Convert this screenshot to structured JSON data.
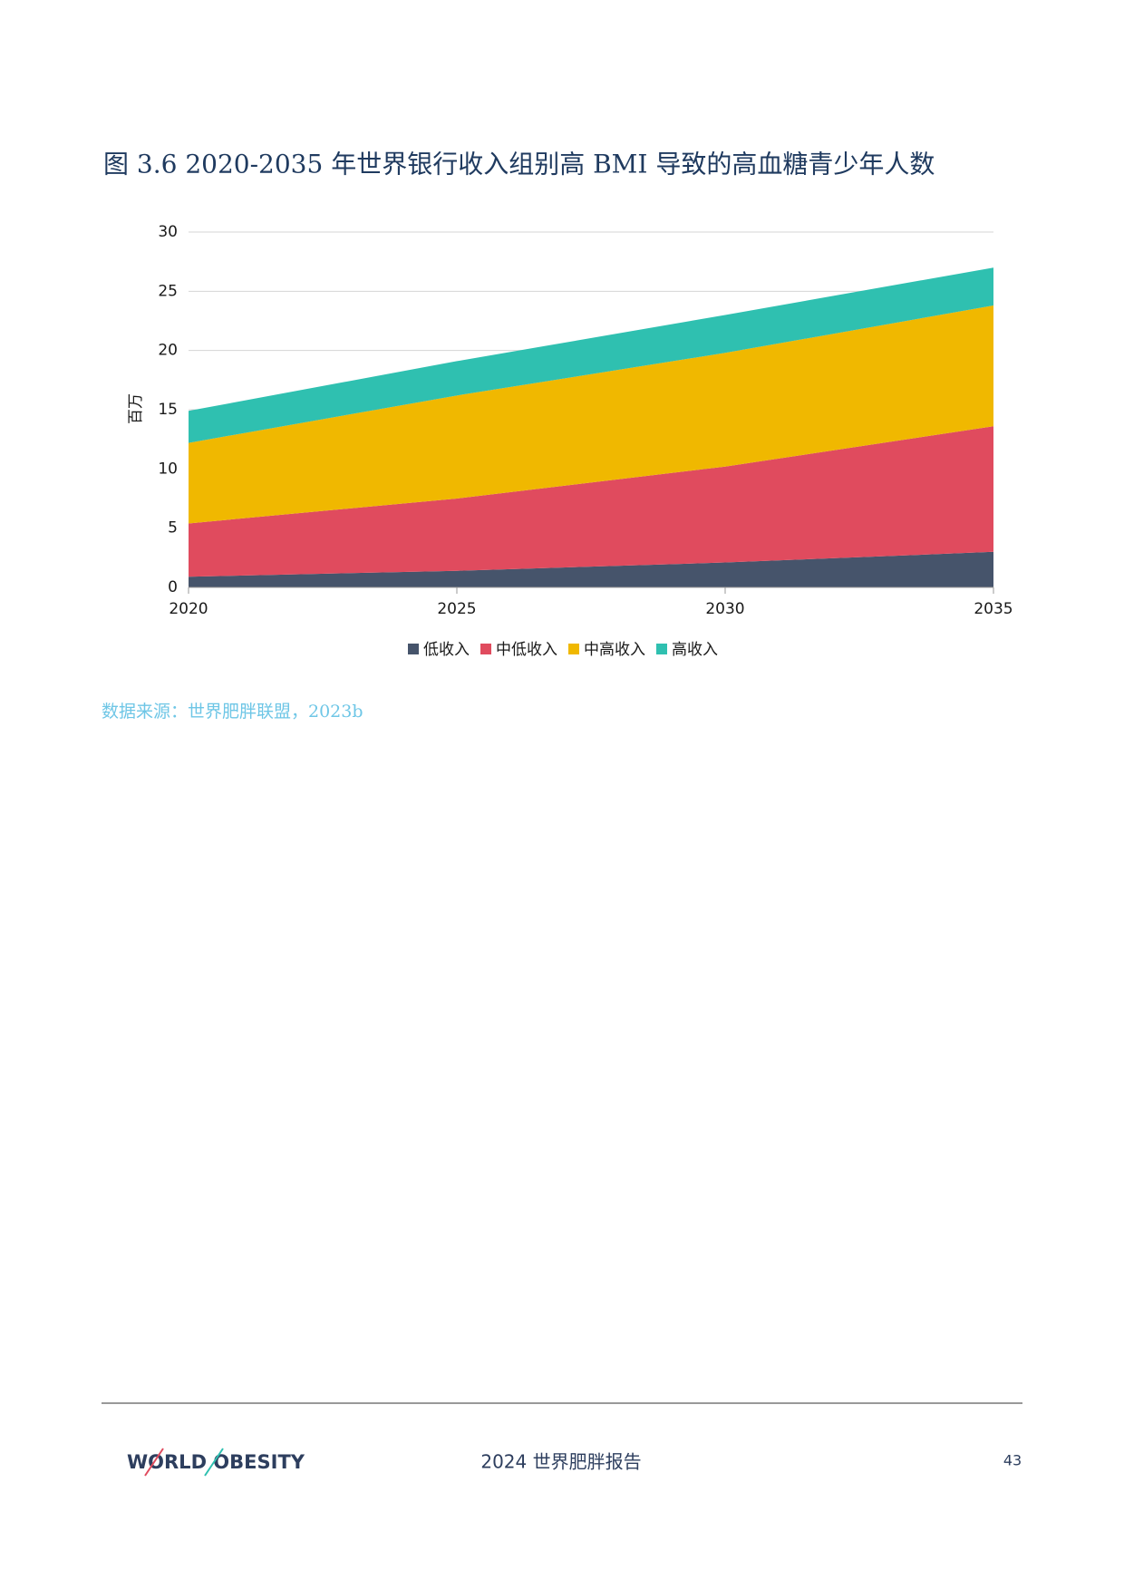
{
  "chart_data": {
    "type": "area",
    "title": "图 3.6 2020-2035 年世界银行收入组别高 BMI 导致的高血糖青少年人数",
    "y_label": "百万",
    "x": [
      2020,
      2025,
      2030,
      2035
    ],
    "xlim": [
      2020,
      2035
    ],
    "xticks": [
      2020,
      2025,
      2030,
      2035
    ],
    "ylim": [
      0,
      30
    ],
    "yticks": [
      0,
      5,
      10,
      15,
      20,
      25,
      30
    ],
    "grid": true,
    "stacked": true,
    "series": [
      {
        "name": "低收入",
        "color": "#46546b",
        "values": [
          0.9,
          1.4,
          2.1,
          3.0
        ]
      },
      {
        "name": "中低收入",
        "color": "#e04b5e",
        "values": [
          4.5,
          6.1,
          8.1,
          10.6
        ]
      },
      {
        "name": "中高收入",
        "color": "#f0b800",
        "values": [
          6.8,
          8.7,
          9.6,
          10.2
        ]
      },
      {
        "name": "高收入",
        "color": "#2fc0b0",
        "values": [
          2.7,
          2.9,
          3.2,
          3.2
        ]
      }
    ]
  },
  "source": "数据来源：世界肥胖联盟，2023b",
  "footer": {
    "logo": "WORLD OBESITY",
    "report": "2024 世界肥胖报告",
    "page": "43"
  }
}
